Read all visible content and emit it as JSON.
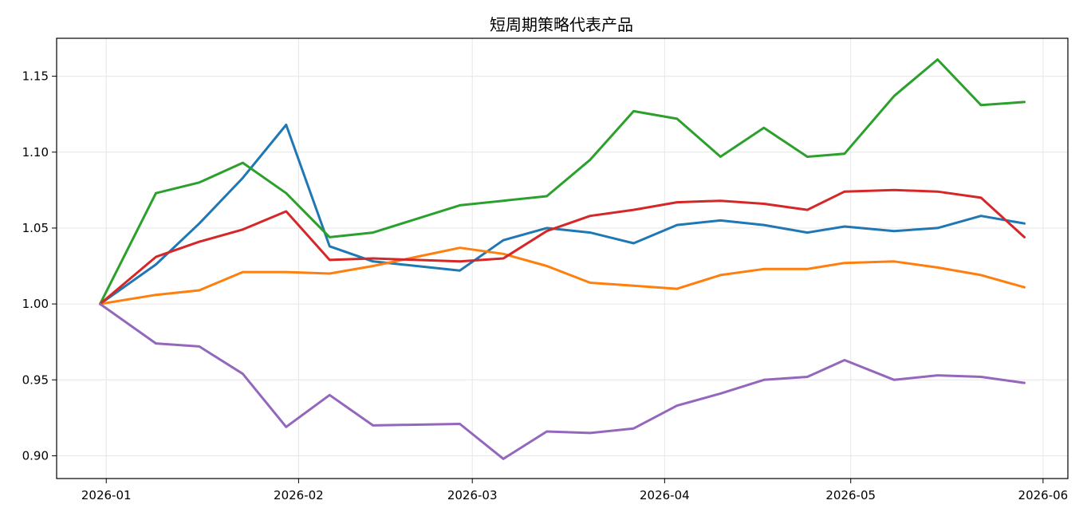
{
  "chart_data": {
    "type": "line",
    "title": "短周期策略代表产品",
    "xlabel": "",
    "ylabel": "",
    "grid": true,
    "x_type": "date",
    "x": [
      "2025-12-31",
      "2026-01-09",
      "2026-01-16",
      "2026-01-23",
      "2026-01-30",
      "2026-02-06",
      "2026-02-13",
      "2026-02-27",
      "2026-03-06",
      "2026-03-13",
      "2026-03-20",
      "2026-03-27",
      "2026-04-03",
      "2026-04-10",
      "2026-04-17",
      "2026-04-24",
      "2026-04-30",
      "2026-05-08",
      "2026-05-15",
      "2026-05-22",
      "2026-05-29"
    ],
    "xlim": [
      "2025-12-24",
      "2026-06-05"
    ],
    "ylim": [
      0.885,
      1.175
    ],
    "x_ticks": [
      {
        "date": "2026-01-01",
        "label": "2026-01"
      },
      {
        "date": "2026-02-01",
        "label": "2026-02"
      },
      {
        "date": "2026-03-01",
        "label": "2026-03"
      },
      {
        "date": "2026-04-01",
        "label": "2026-04"
      },
      {
        "date": "2026-05-01",
        "label": "2026-05"
      },
      {
        "date": "2026-06-01",
        "label": "2026-06"
      }
    ],
    "y_ticks": [
      {
        "value": 0.9,
        "label": "0.90"
      },
      {
        "value": 0.95,
        "label": "0.95"
      },
      {
        "value": 1.0,
        "label": "1.00"
      },
      {
        "value": 1.05,
        "label": "1.05"
      },
      {
        "value": 1.1,
        "label": "1.10"
      },
      {
        "value": 1.15,
        "label": "1.15"
      }
    ],
    "series": [
      {
        "color": "#1f77b4",
        "values": [
          1.0,
          1.026,
          1.053,
          1.083,
          1.118,
          1.038,
          1.028,
          1.022,
          1.042,
          1.05,
          1.047,
          1.04,
          1.052,
          1.055,
          1.052,
          1.047,
          1.051,
          1.048,
          1.05,
          1.058,
          1.053
        ]
      },
      {
        "color": "#ff7f0e",
        "values": [
          1.0,
          1.006,
          1.009,
          1.021,
          1.021,
          1.02,
          1.025,
          1.037,
          1.033,
          1.025,
          1.014,
          1.012,
          1.01,
          1.019,
          1.023,
          1.023,
          1.027,
          1.028,
          1.024,
          1.019,
          1.011
        ]
      },
      {
        "color": "#2ca02c",
        "values": [
          1.0,
          1.073,
          1.08,
          1.093,
          1.073,
          1.044,
          1.047,
          1.065,
          1.068,
          1.071,
          1.095,
          1.127,
          1.122,
          1.097,
          1.116,
          1.097,
          1.099,
          1.137,
          1.161,
          1.131,
          1.133
        ]
      },
      {
        "color": "#d62728",
        "values": [
          1.0,
          1.031,
          1.041,
          1.049,
          1.061,
          1.029,
          1.03,
          1.028,
          1.03,
          1.048,
          1.058,
          1.062,
          1.067,
          1.068,
          1.066,
          1.062,
          1.074,
          1.075,
          1.074,
          1.07,
          1.044
        ]
      },
      {
        "color": "#9467bd",
        "values": [
          1.0,
          0.974,
          0.972,
          0.954,
          0.919,
          0.94,
          0.92,
          0.921,
          0.898,
          0.916,
          0.915,
          0.918,
          0.933,
          0.941,
          0.95,
          0.952,
          0.963,
          0.95,
          0.953,
          0.952,
          0.948
        ]
      }
    ]
  }
}
